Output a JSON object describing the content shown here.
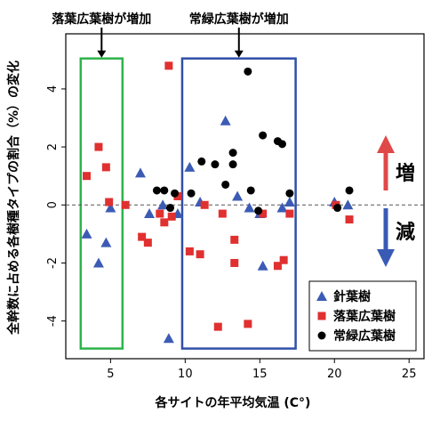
{
  "chart_data": {
    "type": "scatter",
    "xlabel": "各サイトの年平均気温 (C°)",
    "ylabel": "全幹数に占める各樹種タイプの割合（%）の変化",
    "xlim": [
      2,
      26
    ],
    "ylim": [
      -5.3,
      5.9
    ],
    "x_ticks": [
      5,
      10,
      15,
      20,
      25
    ],
    "y_ticks": [
      -4,
      -2,
      0,
      2,
      4
    ],
    "zero_line": true,
    "series": [
      {
        "name": "針葉樹",
        "marker": "triangle",
        "color": "#3b5bb5",
        "points": [
          [
            3.4,
            -1.0
          ],
          [
            4.2,
            -2.0
          ],
          [
            4.7,
            -1.3
          ],
          [
            5.0,
            -0.1
          ],
          [
            7.0,
            1.1
          ],
          [
            7.6,
            -0.3
          ],
          [
            8.5,
            0.0
          ],
          [
            8.9,
            -4.6
          ],
          [
            9.5,
            -0.3
          ],
          [
            10.3,
            1.3
          ],
          [
            11.0,
            0.1
          ],
          [
            12.7,
            2.9
          ],
          [
            13.5,
            0.3
          ],
          [
            14.3,
            -0.1
          ],
          [
            15.0,
            -0.3
          ],
          [
            15.2,
            -2.1
          ],
          [
            16.5,
            -0.1
          ],
          [
            17.0,
            0.1
          ],
          [
            20.0,
            0.1
          ],
          [
            20.9,
            0.0
          ]
        ]
      },
      {
        "name": "落葉広葉樹",
        "marker": "square",
        "color": "#e03030",
        "points": [
          [
            3.4,
            1.0
          ],
          [
            4.2,
            2.0
          ],
          [
            4.7,
            1.3
          ],
          [
            4.9,
            0.1
          ],
          [
            6.0,
            0.0
          ],
          [
            7.1,
            -1.1
          ],
          [
            7.5,
            -1.3
          ],
          [
            8.3,
            -0.3
          ],
          [
            8.6,
            -0.6
          ],
          [
            8.9,
            4.8
          ],
          [
            9.1,
            -0.4
          ],
          [
            9.5,
            0.3
          ],
          [
            10.3,
            -1.6
          ],
          [
            11.0,
            -1.7
          ],
          [
            11.3,
            0.0
          ],
          [
            12.2,
            -4.2
          ],
          [
            12.5,
            -0.3
          ],
          [
            13.3,
            -2.0
          ],
          [
            13.3,
            -1.2
          ],
          [
            14.2,
            -4.1
          ],
          [
            15.2,
            -0.3
          ],
          [
            16.2,
            -2.1
          ],
          [
            16.6,
            -1.9
          ],
          [
            17.0,
            -0.3
          ],
          [
            20.1,
            0.0
          ],
          [
            21.0,
            -0.5
          ]
        ]
      },
      {
        "name": "常緑広葉樹",
        "marker": "circle",
        "color": "#000000",
        "points": [
          [
            8.1,
            0.5
          ],
          [
            8.6,
            0.5
          ],
          [
            9.0,
            -0.1
          ],
          [
            9.3,
            0.4
          ],
          [
            10.4,
            0.4
          ],
          [
            11.1,
            1.5
          ],
          [
            12.0,
            1.4
          ],
          [
            12.7,
            0.7
          ],
          [
            13.2,
            1.8
          ],
          [
            13.2,
            1.4
          ],
          [
            14.2,
            4.6
          ],
          [
            14.4,
            0.5
          ],
          [
            14.9,
            -0.2
          ],
          [
            15.2,
            2.4
          ],
          [
            16.2,
            2.2
          ],
          [
            16.5,
            2.1
          ],
          [
            17.0,
            0.4
          ],
          [
            20.2,
            -0.1
          ],
          [
            21.0,
            0.5
          ]
        ]
      }
    ],
    "annotations": [
      {
        "text": "落葉広葉樹が増加",
        "color": "#2db34a",
        "x_range": [
          3.0,
          5.8
        ],
        "y_range": [
          -4.95,
          5.05
        ]
      },
      {
        "text": "常緑広葉樹が増加",
        "color": "#3050a8",
        "x_range": [
          9.8,
          17.4
        ],
        "y_range": [
          -4.95,
          5.05
        ]
      }
    ],
    "side_labels": [
      {
        "text": "増",
        "direction": "up",
        "color": "#e04848"
      },
      {
        "text": "減",
        "direction": "down",
        "color": "#3a5bb5"
      }
    ],
    "legend": {
      "position": "bottom-right"
    }
  }
}
